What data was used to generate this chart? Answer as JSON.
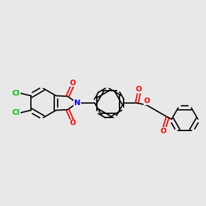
{
  "background_color": "#e8e8e8",
  "bond_color": "#000000",
  "nitrogen_color": "#0000ff",
  "oxygen_color": "#ff0000",
  "chlorine_color": "#00bb00",
  "figsize": [
    3.0,
    3.0
  ],
  "dpi": 100,
  "xlim": [
    0,
    10
  ],
  "ylim": [
    0,
    10
  ]
}
